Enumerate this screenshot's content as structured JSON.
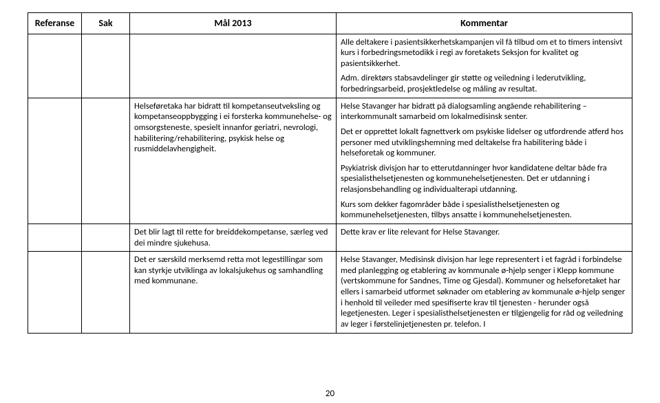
{
  "headers": {
    "referanse": "Referanse",
    "sak": "Sak",
    "mal": "Mål 2013",
    "kommentar": "Kommentar"
  },
  "rows": [
    {
      "mal": "",
      "kommentar_p1": "Alle deltakere i pasientsikkerhetskampanjen vil få tilbud om et to timers intensivt kurs i forbedringsmetodikk i regi av foretakets Seksjon for kvalitet og pasientsikkerhet.",
      "kommentar_p2": "Adm. direktørs stabsavdelinger gir støtte og veiledning i lederutvikling, forbedringsarbeid, prosjektledelse og måling av resultat."
    },
    {
      "mal": "Helseføretaka har bidratt til kompetanseutveksling og kompetanseoppbygging i ei forsterka kommunehelse- og omsorgsteneste, spesielt innanfor geriatri, nevrologi, habilitering/rehabilitering, psykisk helse og rusmiddelavhengigheit.",
      "kommentar_p1": "Helse Stavanger har bidratt på dialogsamling angående rehabilitering – interkommunalt samarbeid om lokalmedisinsk senter.",
      "kommentar_p2": "Det er opprettet lokalt fagnettverk om psykiske lidelser og utfordrende atferd hos personer med utviklingshemning med deltakelse fra habilitering både i helseforetak og kommuner.",
      "kommentar_p3": "Psykiatrisk divisjon har to etterutdanninger hvor kandidatene deltar både fra spesialisthelsetjenesten og kommunehelsetjenesten. Det er utdanning i relasjonsbehandling og individualterapi utdanning.",
      "kommentar_p4": "Kurs som dekker fagområder både i spesialisthelsetjenesten og kommunehelsetjenesten, tilbys ansatte i kommunehelsetjenesten."
    },
    {
      "mal": "Det blir lagt til rette for breiddekompetanse, særleg ved dei mindre sjukehusa.",
      "kommentar": "Dette krav er lite relevant for Helse Stavanger."
    },
    {
      "mal": "Det er særskild merksemd retta mot legestillingar som kan styrkje utviklinga av lokalsjukehus og samhandling med kommunane.",
      "kommentar": "Helse Stavanger, Medisinsk divisjon har lege representert i et fagråd i forbindelse med planlegging og etablering av kommunale ø-hjelp senger i Klepp kommune (vertskommune for Sandnes, Time og Gjesdal). Kommuner og helseforetaket har ellers i samarbeid utformet søknader om etablering av kommunale ø-hjelp senger i henhold til veileder med spesifiserte krav til tjenesten - herunder også legetjenesten. Leger i spesialisthelsetjenesten er tilgjengelig for råd og veiledning av leger i førstelinjetjenesten pr. telefon. I"
    }
  ],
  "pageNumber": "20"
}
